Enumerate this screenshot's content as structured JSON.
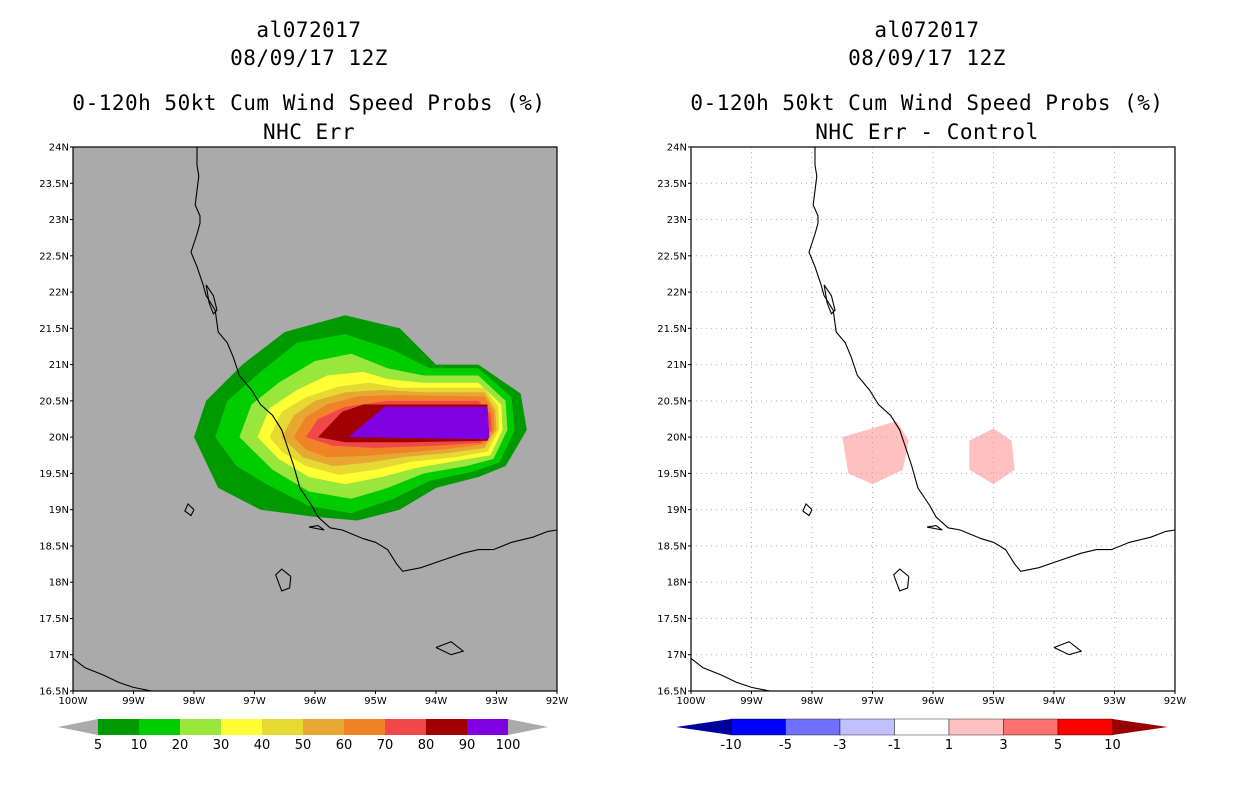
{
  "left_panel": {
    "storm_id": "al072017",
    "datetime": "08/09/17 12Z",
    "product": "0-120h 50kt Cum Wind Speed Probs (%)",
    "subtitle": "NHC Err",
    "background_color": "#aaaaaa",
    "colorbar": {
      "labels": [
        "5",
        "10",
        "20",
        "30",
        "40",
        "50",
        "60",
        "70",
        "80",
        "90",
        "100"
      ],
      "colors": [
        "#009900",
        "#00cc00",
        "#99e63c",
        "#ffff33",
        "#e6d933",
        "#e6a833",
        "#f08228",
        "#f04848",
        "#a00000",
        "#7f00e0"
      ]
    }
  },
  "right_panel": {
    "storm_id": "al072017",
    "datetime": "08/09/17 12Z",
    "product": "0-120h 50kt Cum Wind Speed Probs (%)",
    "subtitle": "NHC Err - Control",
    "background_color": "#ffffff",
    "colorbar": {
      "labels": [
        "-10",
        "-5",
        "-3",
        "-1",
        "1",
        "3",
        "5",
        "10"
      ],
      "colors": [
        "#00009a",
        "#0000ff",
        "#7070ff",
        "#c0c0ff",
        "#ffffff",
        "#ffc0c0",
        "#ff7070",
        "#ff0000",
        "#9a0000"
      ]
    }
  },
  "map": {
    "lat_labels": [
      "24N",
      "23.5N",
      "23N",
      "22.5N",
      "22N",
      "21.5N",
      "21N",
      "20.5N",
      "20N",
      "19.5N",
      "19N",
      "18.5N",
      "18N",
      "17.5N",
      "17N",
      "16.5N"
    ],
    "lon_labels": [
      "100W",
      "99W",
      "98W",
      "97W",
      "96W",
      "95W",
      "94W",
      "93W",
      "92W"
    ],
    "lat_values": [
      24,
      23.5,
      23,
      22.5,
      22,
      21.5,
      21,
      20.5,
      20,
      19.5,
      19,
      18.5,
      18,
      17.5,
      17,
      16.5
    ],
    "lon_values": [
      -100,
      -99,
      -98,
      -97,
      -96,
      -95,
      -94,
      -93,
      -92
    ]
  }
}
